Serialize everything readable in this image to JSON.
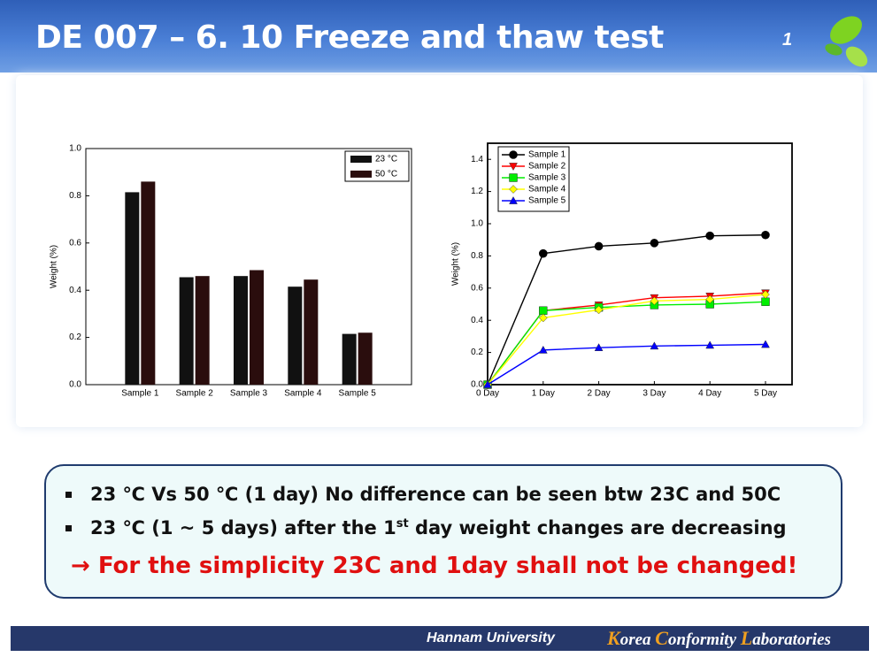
{
  "header": {
    "title": "DE 007 – 6. 10 Freeze and thaw test",
    "page_number": "1"
  },
  "chart_data": [
    {
      "type": "bar",
      "ylabel": "Weight (%)",
      "categories": [
        "Sample 1",
        "Sample 2",
        "Sample 3",
        "Sample 4",
        "Sample 5"
      ],
      "series": [
        {
          "name": "23 °C",
          "color": "#111111",
          "values": [
            0.815,
            0.455,
            0.46,
            0.415,
            0.215
          ]
        },
        {
          "name": "50 °C",
          "color": "#2a0d0d",
          "values": [
            0.86,
            0.46,
            0.485,
            0.445,
            0.22
          ]
        }
      ],
      "ylim": [
        0,
        1
      ],
      "yticks": [
        {
          "value": 0,
          "label": "0.0"
        },
        0.2,
        0.4,
        0.6,
        0.8,
        {
          "value": 1,
          "label": "1.0"
        }
      ],
      "legend": "upper-right"
    },
    {
      "type": "line",
      "ylabel": "Weight (%)",
      "categories": [
        "0 Day",
        "1 Day",
        "2 Day",
        "3 Day",
        "4 Day",
        "5 Day"
      ],
      "series": [
        {
          "name": "Sample 1",
          "color": "#000000",
          "marker": "circle",
          "values": [
            0,
            0.815,
            0.86,
            0.88,
            0.925,
            0.93
          ]
        },
        {
          "name": "Sample 2",
          "color": "#ff0000",
          "marker": "triangle-down",
          "values": [
            0,
            0.46,
            0.495,
            0.54,
            0.55,
            0.57
          ]
        },
        {
          "name": "Sample 3",
          "color": "#00ee00",
          "marker": "square",
          "values": [
            0,
            0.46,
            0.48,
            0.495,
            0.5,
            0.515
          ]
        },
        {
          "name": "Sample 4",
          "color": "#ffff00",
          "marker": "diamond",
          "values": [
            0,
            0.415,
            0.465,
            0.52,
            0.53,
            0.56
          ]
        },
        {
          "name": "Sample 5",
          "color": "#0000ff",
          "marker": "triangle-up",
          "values": [
            0,
            0.215,
            0.23,
            0.24,
            0.245,
            0.25
          ]
        }
      ],
      "ylim": [
        0,
        1.5
      ],
      "yticks": [
        {
          "value": 0,
          "label": "0.0"
        },
        0.2,
        0.4,
        0.6,
        0.8,
        {
          "value": 1,
          "label": "1.0"
        },
        1.2,
        1.4
      ],
      "legend": "upper-left"
    }
  ],
  "notes": {
    "bullet_1": "23 ℃ Vs 50 ℃ (1 day) No difference can be seen btw 23C and 50C",
    "bullet_2": [
      "23 ℃ (1 ~ 5 days) after the 1",
      "st",
      " day weight changes are decreasing"
    ],
    "conclusion": "→ For the simplicity 23C and 1day shall not be changed!"
  },
  "footer": {
    "university": "Hannam University",
    "lab": [
      "K",
      "orea ",
      "C",
      "onformity ",
      "L",
      "aboratories"
    ]
  }
}
